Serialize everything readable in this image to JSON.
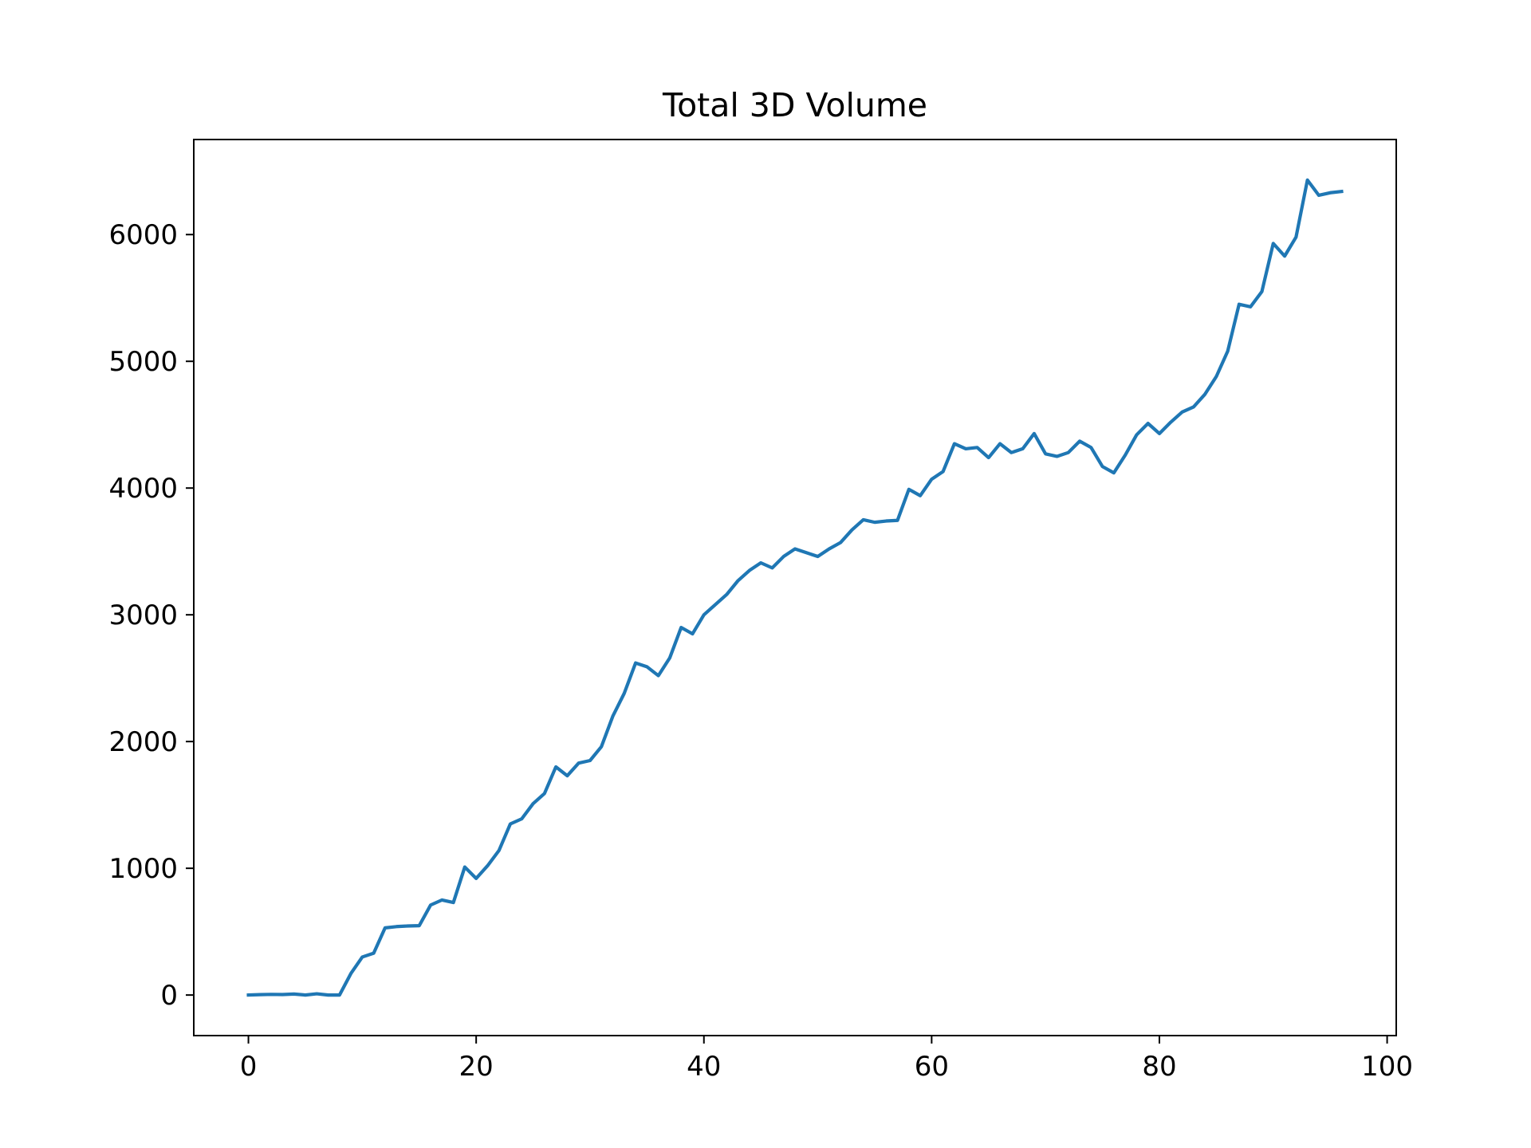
{
  "chart_data": {
    "type": "line",
    "title": "Total 3D Volume",
    "xlabel": "",
    "ylabel": "",
    "xlim": [
      -4.8,
      100.8
    ],
    "ylim": [
      -320,
      6750
    ],
    "xticks": [
      0,
      20,
      40,
      60,
      80,
      100
    ],
    "yticks": [
      0,
      1000,
      2000,
      3000,
      4000,
      5000,
      6000
    ],
    "xtick_labels": [
      "0",
      "20",
      "40",
      "60",
      "80",
      "100"
    ],
    "ytick_labels": [
      "0",
      "1000",
      "2000",
      "3000",
      "4000",
      "5000",
      "6000"
    ],
    "grid": false,
    "legend": "none",
    "series": [
      {
        "color": "#1f77b4",
        "x": [
          0,
          1,
          2,
          3,
          4,
          5,
          6,
          7,
          8,
          9,
          10,
          11,
          12,
          13,
          14,
          15,
          16,
          17,
          18,
          19,
          20,
          21,
          22,
          23,
          24,
          25,
          26,
          27,
          28,
          29,
          30,
          31,
          32,
          33,
          34,
          35,
          36,
          37,
          38,
          39,
          40,
          41,
          42,
          43,
          44,
          45,
          46,
          47,
          48,
          49,
          50,
          51,
          52,
          53,
          54,
          55,
          56,
          57,
          58,
          59,
          60,
          61,
          62,
          63,
          64,
          65,
          66,
          67,
          68,
          69,
          70,
          71,
          72,
          73,
          74,
          75,
          76,
          77,
          78,
          79,
          80,
          81,
          82,
          83,
          84,
          85,
          86,
          87,
          88,
          89,
          90,
          91,
          92,
          93,
          94,
          95,
          96
        ],
        "values": [
          0,
          3,
          5,
          4,
          8,
          0,
          10,
          0,
          0,
          170,
          300,
          330,
          530,
          540,
          545,
          547,
          710,
          750,
          730,
          1010,
          920,
          1020,
          1140,
          1350,
          1390,
          1510,
          1590,
          1800,
          1730,
          1830,
          1850,
          1960,
          2200,
          2380,
          2620,
          2590,
          2520,
          2660,
          2900,
          2850,
          3000,
          3080,
          3160,
          3270,
          3350,
          3410,
          3370,
          3460,
          3520,
          3490,
          3460,
          3520,
          3570,
          3670,
          3750,
          3730,
          3740,
          3745,
          3990,
          3940,
          4070,
          4130,
          4350,
          4310,
          4320,
          4240,
          4350,
          4280,
          4310,
          4430,
          4270,
          4250,
          4280,
          4370,
          4320,
          4170,
          4120,
          4260,
          4420,
          4510,
          4430,
          4520,
          4600,
          4640,
          4740,
          4880,
          5080,
          5450,
          5430,
          5550,
          5930,
          5830,
          5980,
          6430,
          6310,
          6330,
          6340
        ]
      }
    ]
  }
}
